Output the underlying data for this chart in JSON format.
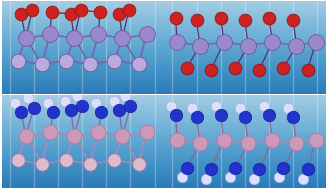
{
  "p_color_top": "#9988cc",
  "p_color_bot": "#cc99bb",
  "o_color": "#cc2222",
  "n_color": "#2233cc",
  "h_color": "#ddddff",
  "bond_color_top": "#7766aa",
  "bond_color_bot": "#aa88bb",
  "bg_top": "#7a8ec8",
  "bg_bot_color": "#a0b0e0",
  "figsize": [
    3.27,
    1.89
  ],
  "dpi": 100
}
